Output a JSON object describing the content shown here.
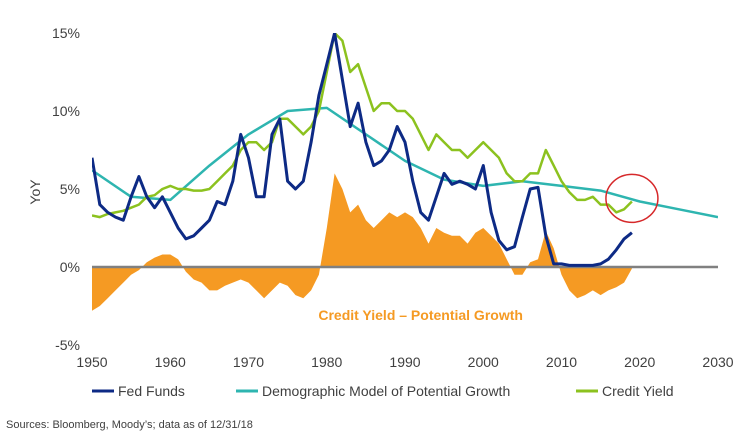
{
  "chart_data": {
    "type": "line",
    "title": "",
    "xlabel": "",
    "ylabel": "YoY",
    "xlim": [
      1950,
      2030
    ],
    "ylim": [
      -5,
      15
    ],
    "x_ticks": [
      "1950",
      "1960",
      "1970",
      "1980",
      "1990",
      "2000",
      "2010",
      "2020",
      "2030"
    ],
    "y_ticks": [
      "15%",
      "10%",
      "5%",
      "0%",
      "-5%"
    ],
    "grid": false,
    "legend_position": "bottom",
    "colors": {
      "fed_funds": "#0d2a85",
      "demographic": "#2eb5b0",
      "credit_yield": "#8cc21f",
      "spread_area": "#f59a23",
      "zero_line": "#808080",
      "highlight_circle": "#d6282a",
      "annotation": "#f59a23"
    },
    "series": [
      {
        "name": "Fed Funds",
        "x": [
          1950,
          1951,
          1952,
          1953,
          1954,
          1955,
          1956,
          1957,
          1958,
          1959,
          1960,
          1961,
          1962,
          1963,
          1964,
          1965,
          1966,
          1967,
          1968,
          1969,
          1970,
          1971,
          1972,
          1973,
          1974,
          1975,
          1976,
          1977,
          1978,
          1979,
          1980,
          1981,
          1982,
          1983,
          1984,
          1985,
          1986,
          1987,
          1988,
          1989,
          1990,
          1991,
          1992,
          1993,
          1994,
          1995,
          1996,
          1997,
          1998,
          1999,
          2000,
          2001,
          2002,
          2003,
          2004,
          2005,
          2006,
          2007,
          2008,
          2009,
          2010,
          2011,
          2012,
          2013,
          2014,
          2015,
          2016,
          2017,
          2018,
          2019
        ],
        "values": [
          7.0,
          4.0,
          3.5,
          3.2,
          3.0,
          4.5,
          5.8,
          4.5,
          3.8,
          4.5,
          3.5,
          2.5,
          1.8,
          2.0,
          2.5,
          3.0,
          4.2,
          4.0,
          5.5,
          8.5,
          7.0,
          4.5,
          4.5,
          8.5,
          9.5,
          5.5,
          5.0,
          5.5,
          8.0,
          11.0,
          13.0,
          15.0,
          12.0,
          9.0,
          10.5,
          8.0,
          6.5,
          6.8,
          7.5,
          9.0,
          8.0,
          5.5,
          3.5,
          3.0,
          4.5,
          6.0,
          5.3,
          5.5,
          5.3,
          5.0,
          6.5,
          3.5,
          1.7,
          1.1,
          1.3,
          3.2,
          5.0,
          5.1,
          2.0,
          0.2,
          0.2,
          0.1,
          0.1,
          0.1,
          0.1,
          0.2,
          0.5,
          1.1,
          1.8,
          2.2
        ]
      },
      {
        "name": "Demographic Model of Potential Growth",
        "x": [
          1950,
          1955,
          1960,
          1965,
          1970,
          1975,
          1980,
          1985,
          1990,
          1995,
          2000,
          2005,
          2010,
          2015,
          2020,
          2025,
          2030
        ],
        "values": [
          6.2,
          4.5,
          4.3,
          6.5,
          8.5,
          10.0,
          10.2,
          8.5,
          6.8,
          5.6,
          5.2,
          5.5,
          5.2,
          4.9,
          4.2,
          3.7,
          3.2
        ]
      },
      {
        "name": "Credit Yield",
        "x": [
          1950,
          1951,
          1952,
          1953,
          1954,
          1955,
          1956,
          1957,
          1958,
          1959,
          1960,
          1961,
          1962,
          1963,
          1964,
          1965,
          1966,
          1967,
          1968,
          1969,
          1970,
          1971,
          1972,
          1973,
          1974,
          1975,
          1976,
          1977,
          1978,
          1979,
          1980,
          1981,
          1982,
          1983,
          1984,
          1985,
          1986,
          1987,
          1988,
          1989,
          1990,
          1991,
          1992,
          1993,
          1994,
          1995,
          1996,
          1997,
          1998,
          1999,
          2000,
          2001,
          2002,
          2003,
          2004,
          2005,
          2006,
          2007,
          2008,
          2009,
          2010,
          2011,
          2012,
          2013,
          2014,
          2015,
          2016,
          2017,
          2018,
          2019
        ],
        "values": [
          3.3,
          3.2,
          3.4,
          3.5,
          3.6,
          3.8,
          4.0,
          4.5,
          4.6,
          5.0,
          5.2,
          5.0,
          5.0,
          4.9,
          4.9,
          5.0,
          5.5,
          6.0,
          6.5,
          7.5,
          8.0,
          8.0,
          7.5,
          8.0,
          9.5,
          9.5,
          9.0,
          8.5,
          9.0,
          10.0,
          12.5,
          15.0,
          14.5,
          12.5,
          13.0,
          11.5,
          10.0,
          10.5,
          10.5,
          10.0,
          10.0,
          9.5,
          8.5,
          7.5,
          8.5,
          8.0,
          7.5,
          7.5,
          7.0,
          7.5,
          8.0,
          7.5,
          7.0,
          6.0,
          5.5,
          5.5,
          6.0,
          6.0,
          7.5,
          6.5,
          5.5,
          4.8,
          4.3,
          4.3,
          4.5,
          4.0,
          4.0,
          3.5,
          3.7,
          4.2
        ]
      }
    ],
    "area": {
      "name": "Credit Yield – Potential Growth",
      "x": [
        1950,
        1951,
        1952,
        1953,
        1954,
        1955,
        1956,
        1957,
        1958,
        1959,
        1960,
        1961,
        1962,
        1963,
        1964,
        1965,
        1966,
        1967,
        1968,
        1969,
        1970,
        1971,
        1972,
        1973,
        1974,
        1975,
        1976,
        1977,
        1978,
        1979,
        1980,
        1981,
        1982,
        1983,
        1984,
        1985,
        1986,
        1987,
        1988,
        1989,
        1990,
        1991,
        1992,
        1993,
        1994,
        1995,
        1996,
        1997,
        1998,
        1999,
        2000,
        2001,
        2002,
        2003,
        2004,
        2005,
        2006,
        2007,
        2008,
        2009,
        2010,
        2011,
        2012,
        2013,
        2014,
        2015,
        2016,
        2017,
        2018,
        2019
      ],
      "values": [
        -2.8,
        -2.5,
        -2.0,
        -1.5,
        -1.0,
        -0.5,
        -0.2,
        0.3,
        0.6,
        0.8,
        0.8,
        0.5,
        -0.3,
        -0.8,
        -1.0,
        -1.5,
        -1.5,
        -1.2,
        -1.0,
        -0.8,
        -1.0,
        -1.5,
        -2.0,
        -1.5,
        -1.0,
        -1.2,
        -1.8,
        -2.0,
        -1.5,
        -0.5,
        2.5,
        6.0,
        5.0,
        3.5,
        4.0,
        3.0,
        2.5,
        3.0,
        3.5,
        3.2,
        3.5,
        3.2,
        2.5,
        1.5,
        2.5,
        2.2,
        2.0,
        2.0,
        1.5,
        2.2,
        2.5,
        2.0,
        1.5,
        0.5,
        -0.5,
        -0.5,
        0.3,
        0.5,
        2.3,
        1.2,
        -0.5,
        -1.5,
        -2.0,
        -1.8,
        -1.5,
        -1.8,
        -1.5,
        -1.3,
        -1.0,
        -0.1
      ]
    },
    "annotations": [
      {
        "text": "Credit Yield – Potential Growth",
        "x": 1992,
        "y": -3.4
      }
    ],
    "highlight": {
      "x": 2019,
      "y": 4.4,
      "shape": "circle"
    },
    "source": "Sources: Bloomberg, Moody’s; data as of 12/31/18"
  }
}
